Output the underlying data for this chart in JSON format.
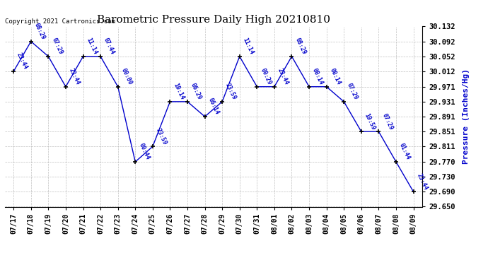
{
  "title": "Barometric Pressure Daily High 20210810",
  "ylabel": "Pressure (Inches/Hg)",
  "copyright": "Copyright 2021 Cartronics.com",
  "dates": [
    "07/17",
    "07/18",
    "07/19",
    "07/20",
    "07/21",
    "07/22",
    "07/23",
    "07/24",
    "07/25",
    "07/26",
    "07/27",
    "07/28",
    "07/29",
    "07/30",
    "07/31",
    "08/01",
    "08/02",
    "08/03",
    "08/04",
    "08/05",
    "08/06",
    "08/07",
    "08/08",
    "08/09"
  ],
  "values": [
    30.012,
    30.092,
    30.052,
    29.971,
    30.052,
    30.052,
    29.971,
    29.77,
    29.811,
    29.931,
    29.931,
    29.891,
    29.931,
    30.052,
    29.971,
    29.971,
    30.052,
    29.971,
    29.971,
    29.931,
    29.851,
    29.851,
    29.77,
    29.69
  ],
  "annotations": [
    "23:44",
    "08:29",
    "07:29",
    "23:44",
    "11:14",
    "07:44",
    "00:00",
    "00:44",
    "23:59",
    "10:14",
    "06:29",
    "06:14",
    "23:59",
    "11:14",
    "00:29",
    "23:44",
    "08:29",
    "08:14",
    "08:14",
    "07:29",
    "19:59",
    "07:29",
    "01:44",
    "23:44"
  ],
  "ylim_min": 29.65,
  "ylim_max": 30.132,
  "yticks": [
    29.65,
    29.69,
    29.73,
    29.77,
    29.811,
    29.851,
    29.891,
    29.931,
    29.971,
    30.012,
    30.052,
    30.092,
    30.132
  ],
  "line_color": "#0000cc",
  "marker_color": "#000000",
  "annotation_color": "#0000cc",
  "title_color": "#000000",
  "ylabel_color": "#0000cc",
  "copyright_color": "#000000",
  "bg_color": "#ffffff",
  "grid_color": "#b0b0b0"
}
